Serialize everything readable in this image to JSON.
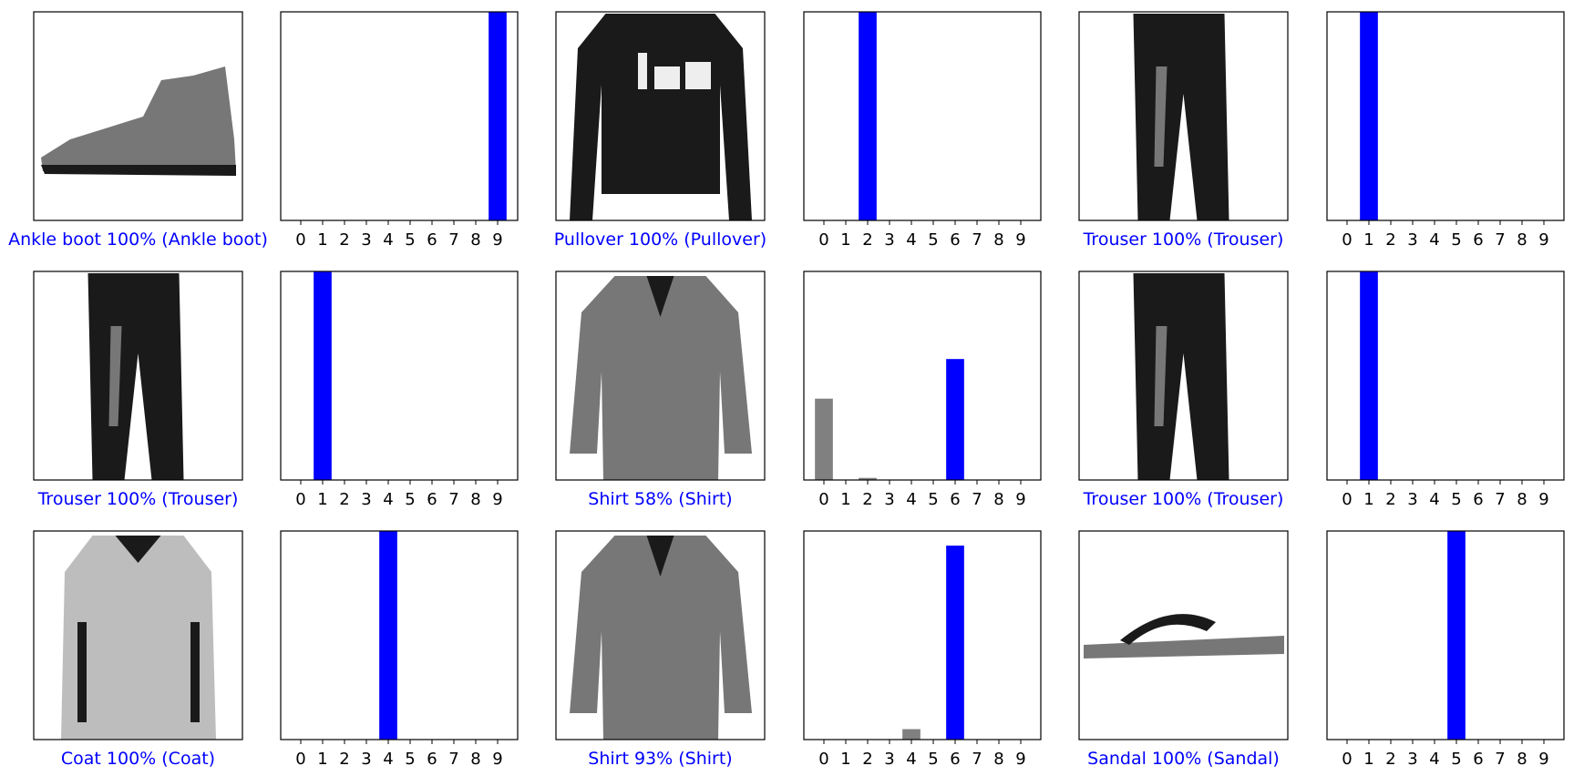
{
  "figure": {
    "colors": {
      "predicted_true": "#0000ff",
      "other": "#808080",
      "label": "#0000ff"
    },
    "icons": [
      "ankle-boot-icon",
      "pullover-icon",
      "trouser-icon",
      "shirt-icon",
      "coat-icon",
      "sandal-icon"
    ]
  },
  "chart_data": [
    {
      "type": "bar",
      "label": "Ankle boot 100% (Ankle boot)",
      "image": "ankle-boot-icon",
      "categories": [
        "0",
        "1",
        "2",
        "3",
        "4",
        "5",
        "6",
        "7",
        "8",
        "9"
      ],
      "values": [
        0,
        0,
        0,
        0,
        0,
        0,
        0,
        0,
        0,
        1.0
      ],
      "predicted": 9,
      "true": 9,
      "ylim": [
        0,
        1
      ],
      "grid": false
    },
    {
      "type": "bar",
      "label": "Pullover 100% (Pullover)",
      "image": "pullover-icon",
      "categories": [
        "0",
        "1",
        "2",
        "3",
        "4",
        "5",
        "6",
        "7",
        "8",
        "9"
      ],
      "values": [
        0,
        0,
        1.0,
        0,
        0,
        0,
        0,
        0,
        0,
        0
      ],
      "predicted": 2,
      "true": 2,
      "ylim": [
        0,
        1
      ],
      "grid": false
    },
    {
      "type": "bar",
      "label": "Trouser 100% (Trouser)",
      "image": "trouser-icon",
      "categories": [
        "0",
        "1",
        "2",
        "3",
        "4",
        "5",
        "6",
        "7",
        "8",
        "9"
      ],
      "values": [
        0,
        1.0,
        0,
        0,
        0,
        0,
        0,
        0,
        0,
        0
      ],
      "predicted": 1,
      "true": 1,
      "ylim": [
        0,
        1
      ],
      "grid": false
    },
    {
      "type": "bar",
      "label": "Trouser 100% (Trouser)",
      "image": "trouser-icon",
      "categories": [
        "0",
        "1",
        "2",
        "3",
        "4",
        "5",
        "6",
        "7",
        "8",
        "9"
      ],
      "values": [
        0,
        1.0,
        0,
        0,
        0,
        0,
        0,
        0,
        0,
        0
      ],
      "predicted": 1,
      "true": 1,
      "ylim": [
        0,
        1
      ],
      "grid": false
    },
    {
      "type": "bar",
      "label": "Shirt 58% (Shirt)",
      "image": "shirt-icon",
      "categories": [
        "0",
        "1",
        "2",
        "3",
        "4",
        "5",
        "6",
        "7",
        "8",
        "9"
      ],
      "values": [
        0.39,
        0,
        0.01,
        0,
        0,
        0,
        0.58,
        0,
        0,
        0
      ],
      "predicted": 6,
      "true": 6,
      "ylim": [
        0,
        1
      ],
      "grid": false
    },
    {
      "type": "bar",
      "label": "Trouser 100% (Trouser)",
      "image": "trouser-icon",
      "categories": [
        "0",
        "1",
        "2",
        "3",
        "4",
        "5",
        "6",
        "7",
        "8",
        "9"
      ],
      "values": [
        0,
        1.0,
        0,
        0,
        0,
        0,
        0,
        0,
        0,
        0
      ],
      "predicted": 1,
      "true": 1,
      "ylim": [
        0,
        1
      ],
      "grid": false
    },
    {
      "type": "bar",
      "label": "Coat 100% (Coat)",
      "image": "coat-icon",
      "categories": [
        "0",
        "1",
        "2",
        "3",
        "4",
        "5",
        "6",
        "7",
        "8",
        "9"
      ],
      "values": [
        0,
        0,
        0,
        0,
        1.0,
        0,
        0,
        0,
        0,
        0
      ],
      "predicted": 4,
      "true": 4,
      "ylim": [
        0,
        1
      ],
      "grid": false
    },
    {
      "type": "bar",
      "label": "Shirt 93% (Shirt)",
      "image": "shirt-icon",
      "categories": [
        "0",
        "1",
        "2",
        "3",
        "4",
        "5",
        "6",
        "7",
        "8",
        "9"
      ],
      "values": [
        0,
        0,
        0,
        0,
        0.05,
        0,
        0.93,
        0,
        0,
        0
      ],
      "predicted": 6,
      "true": 6,
      "ylim": [
        0,
        1
      ],
      "grid": false
    },
    {
      "type": "bar",
      "label": "Sandal 100% (Sandal)",
      "image": "sandal-icon",
      "categories": [
        "0",
        "1",
        "2",
        "3",
        "4",
        "5",
        "6",
        "7",
        "8",
        "9"
      ],
      "values": [
        0,
        0,
        0,
        0,
        0,
        1.0,
        0,
        0,
        0,
        0
      ],
      "predicted": 5,
      "true": 5,
      "ylim": [
        0,
        1
      ],
      "grid": false
    }
  ]
}
